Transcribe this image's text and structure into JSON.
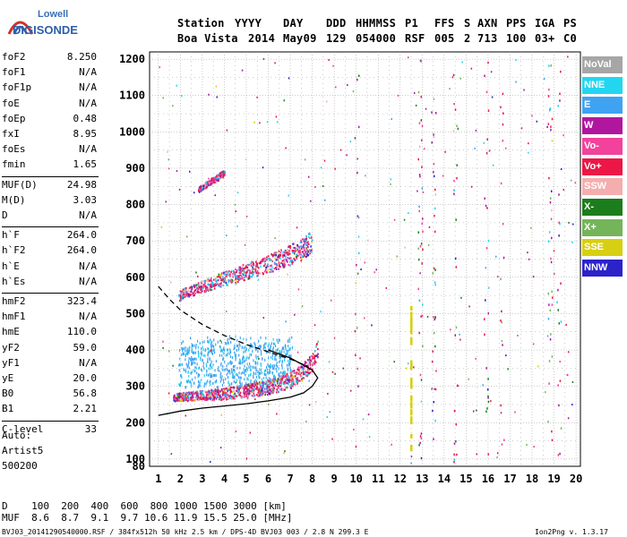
{
  "logo": {
    "org": "Lowell",
    "brand": "DIGISONDE"
  },
  "header": {
    "labels": [
      "Station",
      "YYYY",
      "DAY",
      "DDD",
      "HHMMSS",
      "P1",
      "FFS",
      "S",
      "AXN",
      "PPS",
      "IGA",
      "PS"
    ],
    "values": [
      "Boa Vista",
      "2014",
      "May09",
      "129",
      "054000",
      "RSF",
      "005",
      "2",
      "713",
      "100",
      "03+",
      "C0"
    ]
  },
  "params": {
    "group1": [
      {
        "k": "foF2",
        "v": "8.250"
      },
      {
        "k": "foF1",
        "v": "N/A"
      },
      {
        "k": "foF1p",
        "v": "N/A"
      },
      {
        "k": "foE",
        "v": "N/A"
      },
      {
        "k": "foEp",
        "v": "0.48"
      },
      {
        "k": "fxI",
        "v": "8.95"
      },
      {
        "k": "foEs",
        "v": "N/A"
      },
      {
        "k": "fmin",
        "v": "1.65"
      }
    ],
    "group2": [
      {
        "k": "MUF(D)",
        "v": "24.98"
      },
      {
        "k": "M(D)",
        "v": "3.03"
      },
      {
        "k": "D",
        "v": "N/A"
      }
    ],
    "group3": [
      {
        "k": "h`F",
        "v": "264.0"
      },
      {
        "k": "h`F2",
        "v": "264.0"
      },
      {
        "k": "h`E",
        "v": "N/A"
      },
      {
        "k": "h`Es",
        "v": "N/A"
      }
    ],
    "group4": [
      {
        "k": "hmF2",
        "v": "323.4"
      },
      {
        "k": "hmF1",
        "v": "N/A"
      },
      {
        "k": "hmE",
        "v": "110.0"
      },
      {
        "k": "yF2",
        "v": "59.0"
      },
      {
        "k": "yF1",
        "v": "N/A"
      },
      {
        "k": "yE",
        "v": "20.0"
      },
      {
        "k": "B0",
        "v": "56.8"
      },
      {
        "k": "B1",
        "v": "2.21"
      }
    ],
    "group5": [
      {
        "k": "C-level",
        "v": "33"
      }
    ]
  },
  "autoscaling": {
    "line1": "Auto:",
    "line2": "Artist5",
    "line3": "500200"
  },
  "legend": [
    {
      "label": "NoVal",
      "color": "#a6a6a6"
    },
    {
      "label": "NNE",
      "color": "#22d6f0"
    },
    {
      "label": "E",
      "color": "#3fa3f2"
    },
    {
      "label": "W",
      "color": "#b0179e"
    },
    {
      "label": "Vo-",
      "color": "#f2429c"
    },
    {
      "label": "Vo+",
      "color": "#ec1746"
    },
    {
      "label": "SSW",
      "color": "#f4aeae"
    },
    {
      "label": "X-",
      "color": "#1b7d1b"
    },
    {
      "label": "X+",
      "color": "#74b45a"
    },
    {
      "label": "SSE",
      "color": "#d7cf11"
    },
    {
      "label": "NNW",
      "color": "#2b23c9"
    }
  ],
  "footer": {
    "d_row": "D    100  200  400  600  800 1000 1500 3000 [km]",
    "muf_row": "MUF  8.6  8.7  9.1  9.7 10.6 11.9 15.5 25.0 [MHz]",
    "file_line": "BVJ03_20141290540000.RSF / 384fx512h 50 kHz 2.5 km / DPS-4D BVJ03 003 / 2.8 N 299.3 E",
    "version": "Ion2Png v. 1.3.17"
  },
  "chart_data": {
    "type": "scatter",
    "xlim": [
      0.6,
      20.2
    ],
    "ylim": [
      80,
      1220
    ],
    "x_ticks": [
      1,
      2,
      3,
      4,
      5,
      6,
      7,
      8,
      9,
      10,
      11,
      12,
      13,
      14,
      15,
      16,
      17,
      18,
      19,
      20
    ],
    "y_ticks": [
      80,
      100,
      200,
      300,
      400,
      500,
      600,
      700,
      800,
      900,
      1000,
      1100,
      1200
    ],
    "grid": true,
    "legend_position": "right",
    "traces": [
      {
        "name": "F2 o-trace",
        "x": [
          1.65,
          2.0,
          3.0,
          4.0,
          5.0,
          6.0,
          7.0,
          7.5,
          8.0,
          8.25
        ],
        "y": [
          265,
          268,
          272,
          275,
          282,
          292,
          310,
          330,
          360,
          400
        ]
      },
      {
        "name": "F2 second hop",
        "x": [
          1.9,
          2.5,
          3.5,
          4.5,
          5.5,
          6.5,
          7.5,
          8.0
        ],
        "y": [
          545,
          560,
          580,
          600,
          620,
          640,
          665,
          690
        ]
      },
      {
        "name": "F2 third hop",
        "x": [
          2.8,
          3.2,
          3.6,
          4.0
        ],
        "y": [
          840,
          855,
          870,
          885
        ]
      },
      {
        "name": "profile solid",
        "x": [
          1.0,
          2.0,
          3.0,
          4.0,
          5.0,
          6.0,
          7.0,
          7.6,
          8.0,
          8.25,
          8.0,
          7.0,
          6.0
        ],
        "y": [
          220,
          232,
          240,
          246,
          252,
          260,
          270,
          282,
          300,
          323,
          345,
          378,
          400
        ]
      },
      {
        "name": "profile dashed",
        "x": [
          1.0,
          1.5,
          2.0,
          3.0,
          4.0,
          5.0,
          6.0,
          7.0,
          7.8
        ],
        "y": [
          575,
          540,
          510,
          470,
          440,
          415,
          395,
          375,
          355
        ]
      }
    ]
  }
}
